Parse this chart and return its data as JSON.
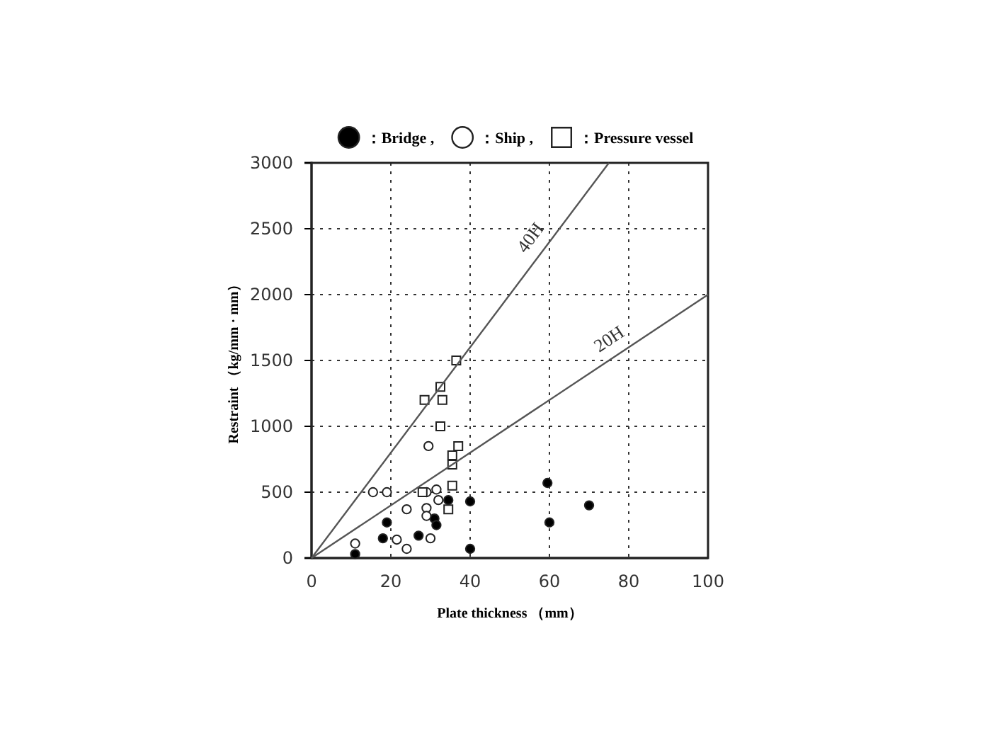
{
  "chart_data": {
    "type": "scatter",
    "xlabel": "Plate thickness （mm）",
    "ylabel": "Restraint （kg/mm · mm）",
    "xlim": [
      0,
      100
    ],
    "ylim": [
      0,
      3000
    ],
    "xticks": [
      0,
      20,
      40,
      60,
      80,
      100
    ],
    "yticks": [
      0,
      500,
      1000,
      1500,
      2000,
      2500,
      3000
    ],
    "grid": true,
    "legend": "top",
    "series": [
      {
        "name": "：Bridge ,",
        "marker": "circle",
        "color": "#000000",
        "x": [
          11,
          19,
          18,
          27,
          31,
          31.5,
          34.5,
          40,
          40,
          59.5,
          60,
          70
        ],
        "values": [
          30,
          270,
          150,
          170,
          300,
          250,
          440,
          430,
          70,
          570,
          270,
          400
        ]
      },
      {
        "name": "：Ship ,",
        "marker": "circle",
        "color": "#ffffff",
        "x": [
          29.5,
          15.5,
          19,
          24,
          29,
          29,
          30,
          21.5,
          24,
          11,
          29,
          31.5,
          32
        ],
        "values": [
          850,
          500,
          500,
          370,
          380,
          320,
          150,
          140,
          70,
          110,
          500,
          520,
          440
        ]
      },
      {
        "name": "：Pressure vessel",
        "marker": "square",
        "color": "#ffffff",
        "x": [
          36.5,
          32.5,
          28.5,
          33,
          32.5,
          37,
          35.5,
          35.5,
          28,
          35.5,
          34.5
        ],
        "values": [
          1500,
          1300,
          1200,
          1200,
          1000,
          850,
          780,
          710,
          500,
          550,
          370
        ]
      },
      {
        "name": "40H",
        "type": "line",
        "marker": "none",
        "color": "#555555",
        "x": [
          0,
          75
        ],
        "values": [
          0,
          3000
        ]
      },
      {
        "name": "20H",
        "type": "line",
        "marker": "none",
        "color": "#555555",
        "x": [
          0,
          100
        ],
        "values": [
          0,
          2000
        ]
      }
    ]
  }
}
